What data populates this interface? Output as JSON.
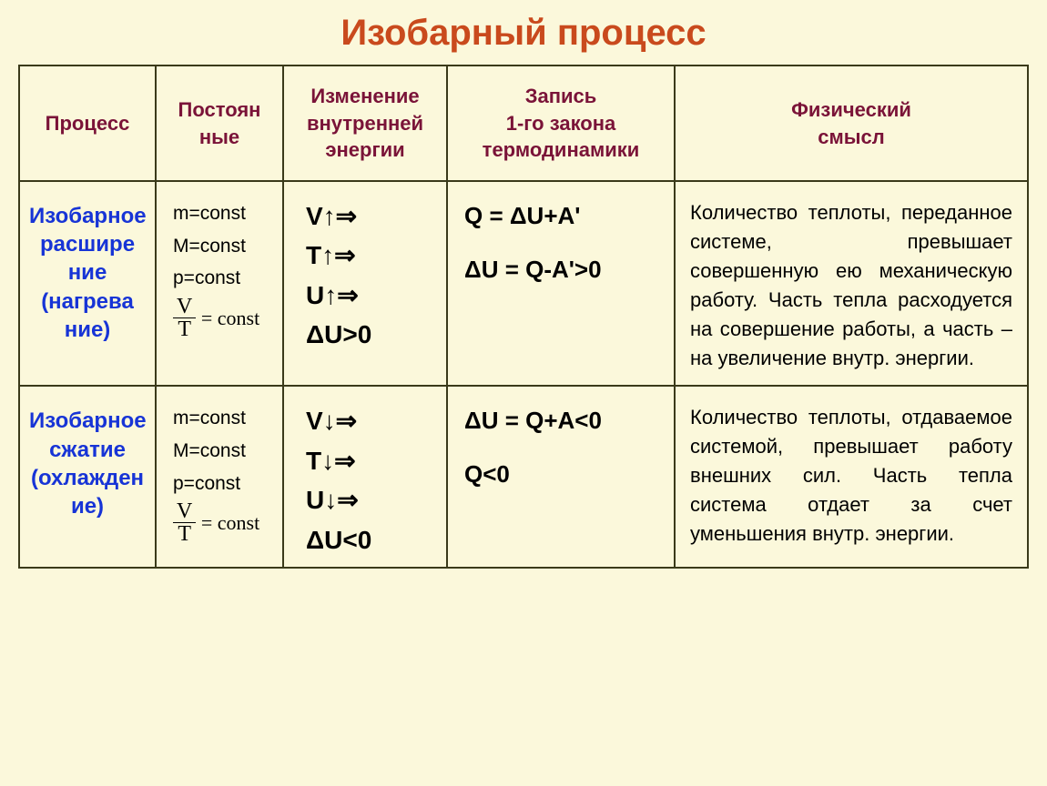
{
  "title": "Изобарный процесс",
  "columns": {
    "c1": "Процесс",
    "c2": "Постоян\nные",
    "c3": "Изменение внутренней энергии",
    "c4": "Запись\n1-го закона термодинамики",
    "c5": "Физический\nсмысл"
  },
  "rows": [
    {
      "process": "Изобарное расшире\nние (нагрева\nние)",
      "consts": {
        "l1": "m=const",
        "l2": "M=const",
        "l3": "p=const",
        "frac_num": "V",
        "frac_den": "T",
        "frac_eq": " = const"
      },
      "energy": {
        "l1": "V↑⇒",
        "l2": "T↑⇒",
        "l3": "U↑⇒",
        "l4": "ΔU>0"
      },
      "law": {
        "l1": "Q = ΔU+A'",
        "l2": "ΔU = Q-A'>0"
      },
      "phys": "Количество теплоты, переданное системе, превышает совершенную ею механическую работу. Часть тепла расходуется на совершение работы, а часть – на увеличение внутр. энергии."
    },
    {
      "process": "Изобарное сжатие (охлажден\nие)",
      "consts": {
        "l1": "m=const",
        "l2": "M=const",
        "l3": "p=const",
        "frac_num": "V",
        "frac_den": "T",
        "frac_eq": " = const"
      },
      "energy": {
        "l1": "V↓⇒",
        "l2": "T↓⇒",
        "l3": "U↓⇒",
        "l4": "ΔU<0"
      },
      "law": {
        "l1": "ΔU = Q+A<0",
        "l2": "Q<0"
      },
      "phys": "Количество теплоты, отдаваемое системой, превышает работу внешних сил. Часть тепла система отдает за счет уменьшения внутр. энергии."
    }
  ],
  "style": {
    "background_color": "#fbf8db",
    "title_color": "#c94a1d",
    "header_color": "#7a1338",
    "process_color": "#1734d6",
    "border_color": "#3a3a1a",
    "title_fontsize": 40,
    "header_fontsize": 22,
    "process_fontsize": 24,
    "energy_fontsize": 28,
    "law_fontsize": 26,
    "phys_fontsize": 22
  }
}
